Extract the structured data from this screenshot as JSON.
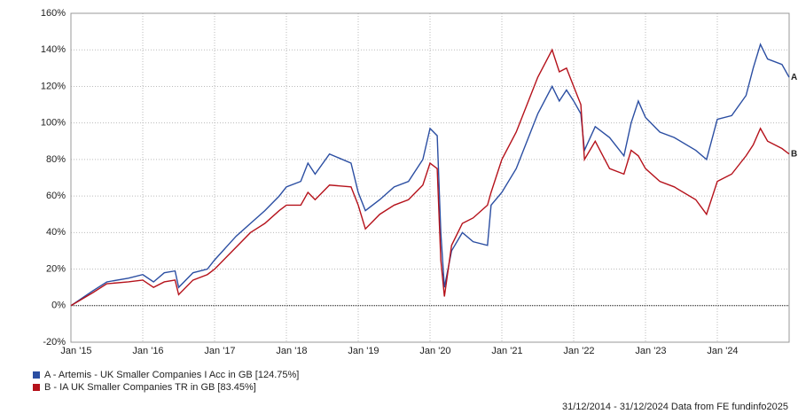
{
  "chart_data": {
    "type": "line",
    "x": [
      2015.0,
      2015.3,
      2015.5,
      2015.8,
      2016.0,
      2016.15,
      2016.3,
      2016.45,
      2016.5,
      2016.7,
      2016.9,
      2017.0,
      2017.3,
      2017.5,
      2017.7,
      2017.9,
      2018.0,
      2018.2,
      2018.3,
      2018.4,
      2018.6,
      2018.9,
      2019.0,
      2019.1,
      2019.3,
      2019.5,
      2019.7,
      2019.9,
      2020.0,
      2020.1,
      2020.15,
      2020.2,
      2020.3,
      2020.45,
      2020.6,
      2020.8,
      2020.85,
      2021.0,
      2021.2,
      2021.4,
      2021.5,
      2021.7,
      2021.8,
      2021.9,
      2022.0,
      2022.1,
      2022.15,
      2022.3,
      2022.5,
      2022.7,
      2022.8,
      2022.9,
      2023.0,
      2023.2,
      2023.4,
      2023.7,
      2023.85,
      2024.0,
      2024.2,
      2024.4,
      2024.5,
      2024.6,
      2024.7,
      2024.9,
      2025.0
    ],
    "series": [
      {
        "name": "A - Artemis - UK Smaller Companies I Acc in GB [124.75%]",
        "end_label": "A",
        "color": "#2b4ea2",
        "values": [
          0,
          8,
          13,
          15,
          17,
          13,
          18,
          19,
          10,
          18,
          20,
          25,
          38,
          45,
          52,
          60,
          65,
          68,
          78,
          72,
          83,
          78,
          62,
          52,
          58,
          65,
          68,
          80,
          97,
          93,
          40,
          10,
          30,
          40,
          35,
          33,
          55,
          62,
          75,
          95,
          105,
          120,
          112,
          118,
          112,
          105,
          85,
          98,
          92,
          82,
          100,
          112,
          103,
          95,
          92,
          85,
          80,
          102,
          104,
          115,
          130,
          143,
          135,
          132,
          125
        ]
      },
      {
        "name": "B - IA UK Smaller Companies TR in GB [83.45%]",
        "end_label": "B",
        "color": "#b5121b",
        "values": [
          0,
          7,
          12,
          13,
          14,
          10,
          13,
          14,
          6,
          14,
          17,
          20,
          32,
          40,
          45,
          52,
          55,
          55,
          62,
          58,
          66,
          65,
          55,
          42,
          50,
          55,
          58,
          66,
          78,
          75,
          25,
          5,
          33,
          45,
          48,
          55,
          62,
          80,
          95,
          115,
          125,
          140,
          128,
          130,
          120,
          110,
          80,
          90,
          75,
          72,
          85,
          82,
          75,
          68,
          65,
          58,
          50,
          68,
          72,
          82,
          88,
          97,
          90,
          86,
          83
        ]
      }
    ],
    "xlim": [
      2015.0,
      2025.0
    ],
    "xticks": [
      {
        "value": 2015,
        "label": "Jan '15"
      },
      {
        "value": 2016,
        "label": "Jan '16"
      },
      {
        "value": 2017,
        "label": "Jan '17"
      },
      {
        "value": 2018,
        "label": "Jan '18"
      },
      {
        "value": 2019,
        "label": "Jan '19"
      },
      {
        "value": 2020,
        "label": "Jan '20"
      },
      {
        "value": 2021,
        "label": "Jan '21"
      },
      {
        "value": 2022,
        "label": "Jan '22"
      },
      {
        "value": 2023,
        "label": "Jan '23"
      },
      {
        "value": 2024,
        "label": "Jan '24"
      }
    ],
    "ylim": [
      -20,
      160
    ],
    "yticks": [
      {
        "value": -20,
        "label": "-20%"
      },
      {
        "value": 0,
        "label": "0%"
      },
      {
        "value": 20,
        "label": "20%"
      },
      {
        "value": 40,
        "label": "40%"
      },
      {
        "value": 60,
        "label": "60%"
      },
      {
        "value": 80,
        "label": "80%"
      },
      {
        "value": 100,
        "label": "100%"
      },
      {
        "value": 120,
        "label": "120%"
      },
      {
        "value": 140,
        "label": "140%"
      },
      {
        "value": 160,
        "label": "160%"
      }
    ],
    "grid": true,
    "footer": "31/12/2014 - 31/12/2024 Data from FE fundinfo2025"
  }
}
